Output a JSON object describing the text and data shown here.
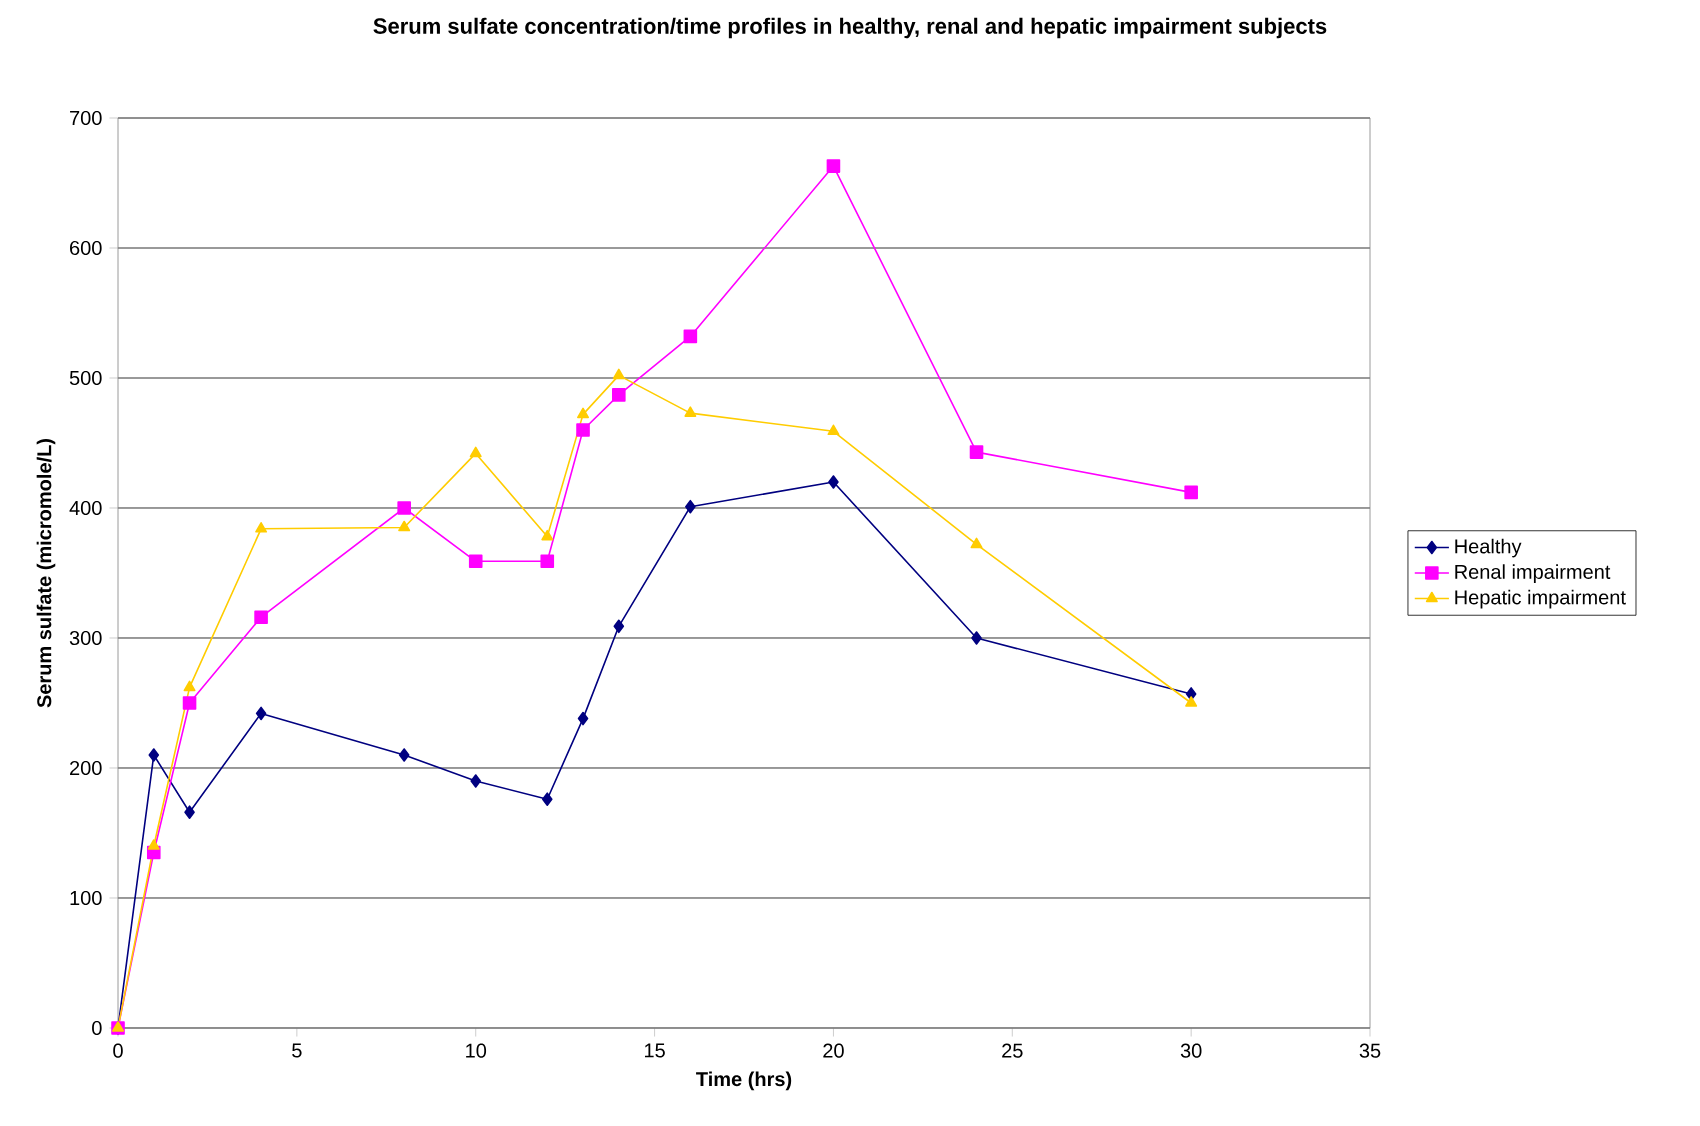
{
  "chart_data": {
    "type": "line",
    "title": "Serum sulfate  concentration/time profiles in healthy, renal and hepatic impairment subjects",
    "xlabel": "Time (hrs)",
    "ylabel": "Serum sulfate (micromole/L)",
    "xlim": [
      0,
      35
    ],
    "xticks": [
      0,
      5,
      10,
      15,
      20,
      25,
      30,
      35
    ],
    "ylim": [
      0,
      700
    ],
    "yticks": [
      0,
      100,
      200,
      300,
      400,
      500,
      600,
      700
    ],
    "grid": "y",
    "legend": "right",
    "line_style": "solid",
    "series": [
      {
        "name": "Healthy",
        "color": "#000080",
        "marker": "diamond",
        "x": [
          0,
          1,
          2,
          4,
          8,
          10,
          12,
          13,
          14,
          16,
          20,
          24,
          30
        ],
        "values": [
          0,
          210,
          166,
          242,
          210,
          190,
          176,
          238,
          309,
          401,
          420,
          300,
          257
        ]
      },
      {
        "name": "Renal impairment",
        "color": "#ff00ff",
        "marker": "square",
        "x": [
          0,
          1,
          2,
          4,
          8,
          10,
          12,
          13,
          14,
          16,
          20,
          24,
          30
        ],
        "values": [
          0,
          135,
          250,
          316,
          400,
          359,
          359,
          460,
          487,
          532,
          663,
          443,
          412
        ]
      },
      {
        "name": "Hepatic impairment",
        "color": "#ffcc00",
        "marker": "triangle",
        "x": [
          0,
          1,
          2,
          4,
          8,
          10,
          12,
          13,
          14,
          16,
          20,
          24,
          30
        ],
        "values": [
          0,
          140,
          262,
          384,
          385,
          442,
          378,
          472,
          502,
          473,
          459,
          372,
          250
        ]
      }
    ]
  }
}
